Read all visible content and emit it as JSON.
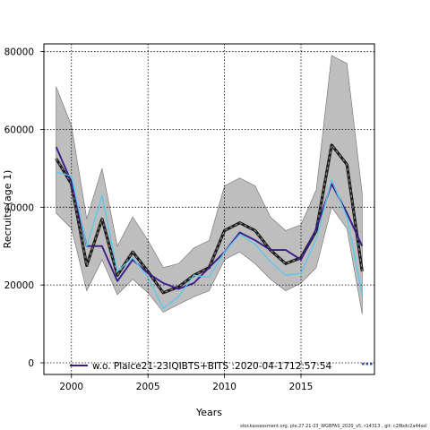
{
  "chart_data": {
    "type": "line",
    "xlabel": "Years",
    "ylabel": "Recruits (age 1)",
    "xlim": [
      1998.2,
      2019.8
    ],
    "ylim": [
      -3000,
      82000
    ],
    "x_ticks": [
      "2000",
      "2005",
      "2010",
      "2015"
    ],
    "y_ticks": [
      "0",
      "20000",
      "40000",
      "60000",
      "80000"
    ],
    "grid": true,
    "legend_position": "bottom",
    "x": [
      1999,
      2000,
      2001,
      2002,
      2003,
      2004,
      2005,
      2006,
      2007,
      2008,
      2009,
      2010,
      2011,
      2012,
      2013,
      2014,
      2015,
      2016,
      2017,
      2018,
      2019
    ],
    "band": {
      "color": "#bebebe",
      "upper": [
        71000,
        61000,
        37000,
        50000,
        30000,
        37500,
        31500,
        24500,
        25500,
        29500,
        31500,
        45500,
        47500,
        45500,
        37500,
        34000,
        35500,
        44500,
        79000,
        77000,
        43500
      ],
      "lower": [
        38500,
        34500,
        18500,
        26500,
        17500,
        21500,
        18000,
        13000,
        15000,
        17000,
        18500,
        26500,
        28500,
        25500,
        21500,
        18500,
        20500,
        24500,
        40000,
        34500,
        12500
      ]
    },
    "series": [
      {
        "color": "#1a1a1a",
        "style": "dashed-thick",
        "values": [
          52500,
          46000,
          25000,
          37000,
          22500,
          28500,
          23500,
          18000,
          19500,
          22500,
          24500,
          34000,
          36000,
          34000,
          29000,
          25500,
          27000,
          34000,
          56000,
          51000,
          23500
        ]
      },
      {
        "color": "#3b1d87",
        "style": "solid",
        "values": [
          55500,
          46500,
          30000,
          30000,
          21000,
          26500,
          23000,
          20500,
          19000,
          20500,
          24500,
          28500,
          33500,
          31500,
          29000,
          29000,
          26500,
          34500,
          46000,
          38500,
          30000
        ]
      },
      {
        "color": "#58c8f0",
        "style": "solid",
        "values": [
          49000,
          48000,
          30000,
          43000,
          23500,
          27000,
          22000,
          14000,
          17000,
          22500,
          22000,
          28500,
          33000,
          30500,
          26000,
          22500,
          23000,
          32000,
          47000,
          37500,
          17500
        ]
      }
    ],
    "legend": [
      {
        "color": "#3b1d87",
        "label": "w.o. Plaice21-23IQIBTS+BITS :2020-04-1712:57:54"
      }
    ]
  },
  "footer_text": "stockassessment.org, ple.27.21-23_WGBFAS_2020_v5, r14313 , git: c28bdc2a44ad"
}
